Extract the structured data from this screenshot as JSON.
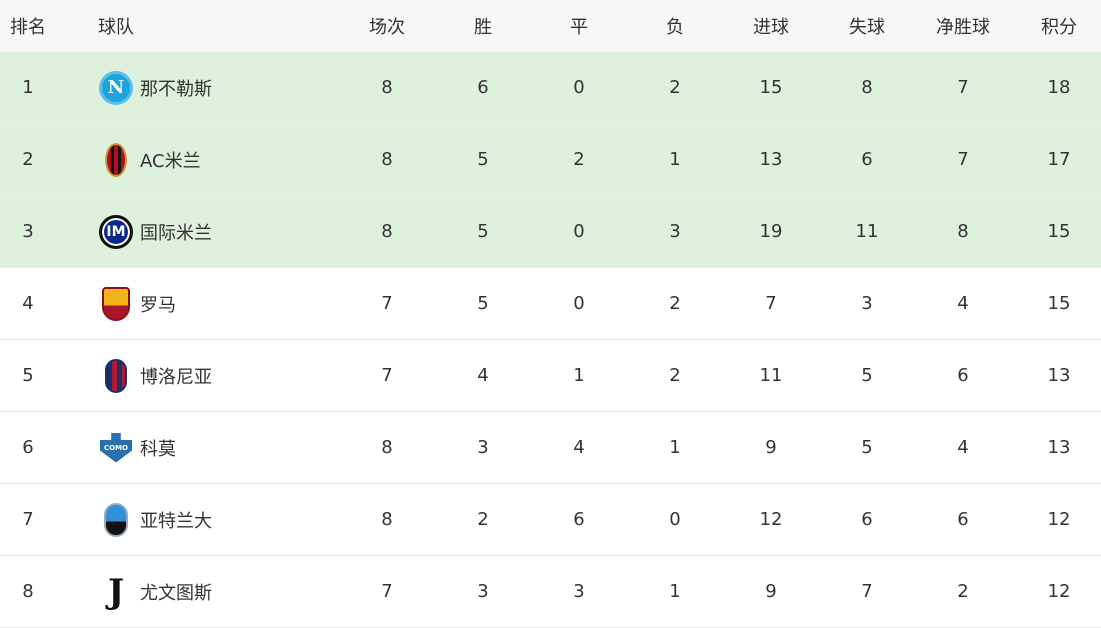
{
  "headers": {
    "rank": "排名",
    "team": "球队",
    "played": "场次",
    "won": "胜",
    "drawn": "平",
    "lost": "负",
    "gf": "进球",
    "ga": "失球",
    "gd": "净胜球",
    "pts": "积分"
  },
  "highlight_color": "#ddf1dd",
  "rows": [
    {
      "rank": "1",
      "team": "那不勒斯",
      "logo": "napoli-logo",
      "played": "8",
      "won": "6",
      "drawn": "0",
      "lost": "2",
      "gf": "15",
      "ga": "8",
      "gd": "7",
      "pts": "18",
      "highlight": true
    },
    {
      "rank": "2",
      "team": "AC米兰",
      "logo": "ac-milan-logo",
      "played": "8",
      "won": "5",
      "drawn": "2",
      "lost": "1",
      "gf": "13",
      "ga": "6",
      "gd": "7",
      "pts": "17",
      "highlight": true
    },
    {
      "rank": "3",
      "team": "国际米兰",
      "logo": "inter-logo",
      "played": "8",
      "won": "5",
      "drawn": "0",
      "lost": "3",
      "gf": "19",
      "ga": "11",
      "gd": "8",
      "pts": "15",
      "highlight": true
    },
    {
      "rank": "4",
      "team": "罗马",
      "logo": "roma-logo",
      "played": "7",
      "won": "5",
      "drawn": "0",
      "lost": "2",
      "gf": "7",
      "ga": "3",
      "gd": "4",
      "pts": "15",
      "highlight": false
    },
    {
      "rank": "5",
      "team": "博洛尼亚",
      "logo": "bologna-logo",
      "played": "7",
      "won": "4",
      "drawn": "1",
      "lost": "2",
      "gf": "11",
      "ga": "5",
      "gd": "6",
      "pts": "13",
      "highlight": false
    },
    {
      "rank": "6",
      "team": "科莫",
      "logo": "como-logo",
      "played": "8",
      "won": "3",
      "drawn": "4",
      "lost": "1",
      "gf": "9",
      "ga": "5",
      "gd": "4",
      "pts": "13",
      "highlight": false
    },
    {
      "rank": "7",
      "team": "亚特兰大",
      "logo": "atalanta-logo",
      "played": "8",
      "won": "2",
      "drawn": "6",
      "lost": "0",
      "gf": "12",
      "ga": "6",
      "gd": "6",
      "pts": "12",
      "highlight": false
    },
    {
      "rank": "8",
      "team": "尤文图斯",
      "logo": "juventus-logo",
      "played": "7",
      "won": "3",
      "drawn": "3",
      "lost": "1",
      "gf": "9",
      "ga": "7",
      "gd": "2",
      "pts": "12",
      "highlight": false
    }
  ]
}
